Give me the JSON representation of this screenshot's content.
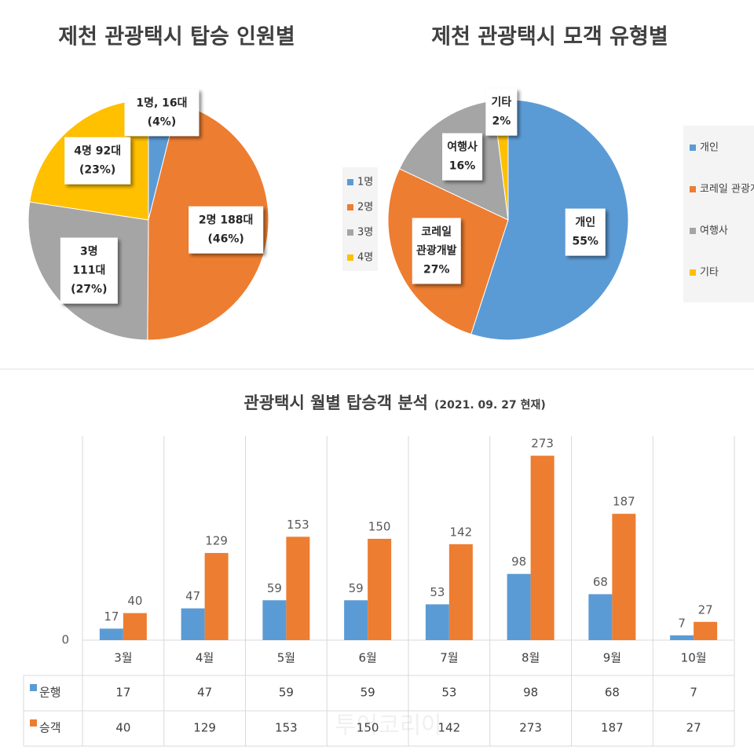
{
  "chart_data": [
    {
      "type": "pie",
      "title": "제천 관광택시 탑승 인원별",
      "categories": [
        "1명",
        "2명",
        "3명",
        "4명"
      ],
      "values": [
        16,
        188,
        111,
        92
      ],
      "value_labels": [
        [
          "1명, 16대",
          "(4%)"
        ],
        [
          "2명 188대",
          "(46%)"
        ],
        [
          "3명",
          "111대",
          "(27%)"
        ],
        [
          "4명 92대",
          "(23%)"
        ]
      ],
      "colors": [
        "#5b9bd5",
        "#ed7d31",
        "#a5a5a5",
        "#ffc000"
      ]
    },
    {
      "type": "pie",
      "title": "제천 관광택시 모객 유형별",
      "categories": [
        "개인",
        "코레일 관광개발",
        "여행사",
        "기타"
      ],
      "values": [
        55,
        27,
        16,
        2
      ],
      "value_labels": [
        [
          "개인",
          "55%"
        ],
        [
          "코레일",
          "관광개발",
          "27%"
        ],
        [
          "여행사",
          "16%"
        ],
        [
          "기타",
          "2%"
        ]
      ],
      "colors": [
        "#5b9bd5",
        "#ed7d31",
        "#a5a5a5",
        "#ffc000"
      ]
    },
    {
      "type": "bar",
      "title": "관광택시 월별 탑승객 분석",
      "subtitle": "(2021. 09. 27 현재)",
      "categories": [
        "3월",
        "4월",
        "5월",
        "6월",
        "7월",
        "8월",
        "9월",
        "10월"
      ],
      "series": [
        {
          "name": "운행",
          "color": "#5b9bd5",
          "values": [
            17,
            47,
            59,
            59,
            53,
            98,
            68,
            7
          ]
        },
        {
          "name": "승객",
          "color": "#ed7d31",
          "values": [
            40,
            129,
            153,
            150,
            142,
            273,
            187,
            27
          ]
        }
      ],
      "ylim": [
        0,
        300
      ],
      "yticks": [
        0
      ],
      "data_table": true,
      "watermark": "투어코리아"
    }
  ]
}
